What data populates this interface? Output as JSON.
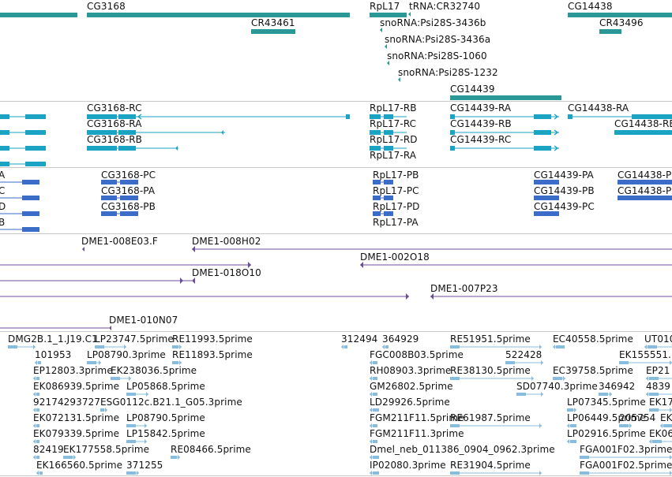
{
  "colors": {
    "gene": "#2a9896",
    "transcript": "#1aa3c2",
    "cds": "#3a6cc8",
    "clone": "#6a4c9c",
    "est": "#87bcdc",
    "divider": "#c8c8c8"
  },
  "tracks": {
    "genes": {
      "labels": [
        "CG3168",
        "RpL17",
        "tRNA:CR32740",
        "CG14438",
        "CR43461",
        "snoRNA:Psi28S-3436b",
        "snoRNA:Psi28S-3436a",
        "snoRNA:Psi28S-1060",
        "snoRNA:Psi28S-1232",
        "CR43496",
        "CG14439"
      ]
    },
    "transcripts": {
      "labels": [
        "CG3168-RC",
        "CG3168-RA",
        "CG3168-RB",
        "RpL17-RB",
        "RpL17-RC",
        "RpL17-RD",
        "RpL17-RA",
        "CG14439-RA",
        "CG14439-RB",
        "CG14439-RC",
        "CG14438-RA",
        "CG14438-RB"
      ]
    },
    "cds": {
      "labels": [
        "A",
        "C",
        "D",
        "B",
        "CG3168-PC",
        "CG3168-PA",
        "CG3168-PB",
        "RpL17-PB",
        "RpL17-PC",
        "RpL17-PD",
        "RpL17-PA",
        "CG14439-PA",
        "CG14439-PB",
        "CG14439-PC",
        "CG14438-P",
        "CG14438-P"
      ]
    },
    "clones": {
      "labels": [
        "DME1-008E03.F",
        "DME1-008H02",
        "DME1-002O18",
        "DME1-018O10",
        "DME1-007P23",
        "DME1-010N07"
      ]
    },
    "ests": {
      "labels": [
        "DMG2B.1_1.J19.C1",
        "LP23747.5prime",
        "RE11993.5prime",
        "312494",
        "364929",
        "RE51951.5prime",
        "EC40558.5prime",
        "UT010",
        "101953",
        "LP08790.3prime",
        "RE11893.5prime",
        "FGC008B03.5prime",
        "522428",
        "EK155551.",
        "EP12803.3prime",
        "EK238036.5prime",
        "RH08903.3prime",
        "RE38130.5prime",
        "EC39758.5prime",
        "EP21",
        "EK086939.5prime",
        "LP05868.5prime",
        "GM26802.5prime",
        "SD07740.3prime",
        "346942",
        "4839",
        "92174293727",
        "ESG0112c.B21.1_G05.3prime",
        "LD29926.5prime",
        "LP07345.5prime",
        "EK17",
        "EK072131.5prime",
        "LP08790.5prime",
        "FGM211F11.5prime",
        "RE61987.5prime",
        "LP06449.5prime",
        "205754",
        "EK",
        "EK079339.5prime",
        "LP15842.5prime",
        "FGM211F11.3prime",
        "LP02916.5prime",
        "EK06",
        "82419",
        "EK177558.5prime",
        "RE08466.5prime",
        "Dmel_neb_011386_0904_0962.3prime",
        "FGA001F02.3prime",
        "EK166560.5prime",
        "371255",
        "IP02080.3prime",
        "RE31904.5prime",
        "FGA001F02.5prime"
      ]
    }
  }
}
